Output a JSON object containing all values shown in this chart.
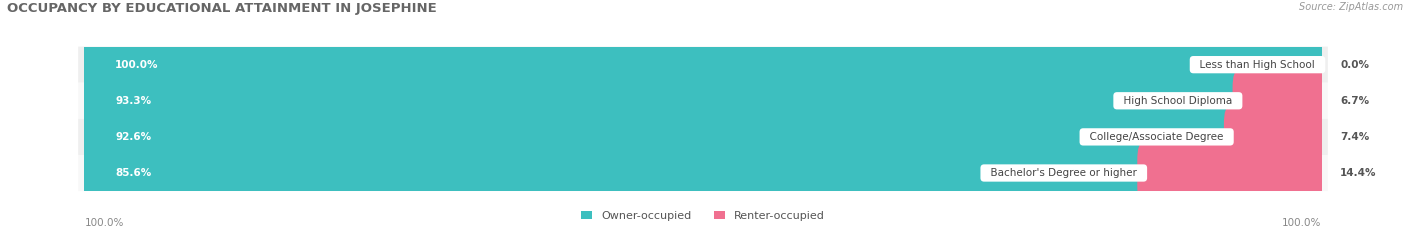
{
  "title": "OCCUPANCY BY EDUCATIONAL ATTAINMENT IN JOSEPHINE",
  "source": "Source: ZipAtlas.com",
  "categories": [
    "Less than High School",
    "High School Diploma",
    "College/Associate Degree",
    "Bachelor's Degree or higher"
  ],
  "owner_values": [
    100.0,
    93.3,
    92.6,
    85.6
  ],
  "renter_values": [
    0.0,
    6.7,
    7.4,
    14.4
  ],
  "owner_color": "#3DBFBF",
  "renter_color": "#F07090",
  "bar_bg_color": "#E0E0E0",
  "row_bg_colors": [
    "#EFEFEF",
    "#F8F8F8",
    "#EFEFEF",
    "#F8F8F8"
  ],
  "title_fontsize": 9.5,
  "source_fontsize": 7,
  "bar_label_fontsize": 7.5,
  "category_fontsize": 7.5,
  "legend_fontsize": 8,
  "footer_fontsize": 7.5,
  "figsize": [
    14.06,
    2.33
  ],
  "dpi": 100
}
